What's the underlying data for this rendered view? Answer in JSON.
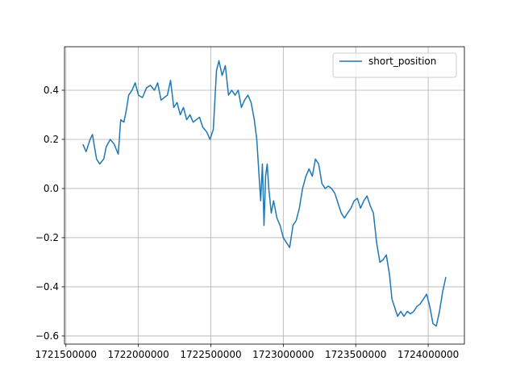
{
  "chart_data": {
    "type": "line",
    "x": [
      1721617000,
      1721639000,
      1721667000,
      1721683000,
      1721711000,
      1721733000,
      1721761000,
      1721778000,
      1721806000,
      1721833000,
      1721861000,
      1721878000,
      1721900000,
      1721917000,
      1721933000,
      1721956000,
      1721978000,
      1722000000,
      1722028000,
      1722056000,
      1722083000,
      1722111000,
      1722133000,
      1722156000,
      1722178000,
      1722200000,
      1722222000,
      1722244000,
      1722267000,
      1722289000,
      1722311000,
      1722333000,
      1722356000,
      1722378000,
      1722400000,
      1722422000,
      1722444000,
      1722472000,
      1722494000,
      1722517000,
      1722539000,
      1722556000,
      1722578000,
      1722600000,
      1722622000,
      1722644000,
      1722667000,
      1722689000,
      1722711000,
      1722733000,
      1722756000,
      1722778000,
      1722800000,
      1722817000,
      1722833000,
      1722844000,
      1722856000,
      1722867000,
      1722878000,
      1722889000,
      1722900000,
      1722917000,
      1722933000,
      1722956000,
      1722978000,
      1723000000,
      1723022000,
      1723044000,
      1723067000,
      1723089000,
      1723111000,
      1723133000,
      1723156000,
      1723178000,
      1723200000,
      1723222000,
      1723244000,
      1723267000,
      1723289000,
      1723311000,
      1723333000,
      1723356000,
      1723378000,
      1723400000,
      1723422000,
      1723444000,
      1723467000,
      1723489000,
      1723511000,
      1723533000,
      1723556000,
      1723578000,
      1723600000,
      1723622000,
      1723644000,
      1723667000,
      1723689000,
      1723711000,
      1723733000,
      1723750000,
      1723767000,
      1723789000,
      1723811000,
      1723833000,
      1723856000,
      1723878000,
      1723900000,
      1723922000,
      1723944000,
      1723967000,
      1723989000,
      1724011000,
      1724033000,
      1724056000,
      1724078000,
      1724100000,
      1724122000
    ],
    "series": [
      {
        "name": "short_position",
        "color": "#1f77b4",
        "values": [
          0.18,
          0.15,
          0.2,
          0.22,
          0.12,
          0.1,
          0.12,
          0.17,
          0.2,
          0.18,
          0.14,
          0.28,
          0.27,
          0.32,
          0.38,
          0.4,
          0.43,
          0.38,
          0.37,
          0.41,
          0.42,
          0.4,
          0.43,
          0.36,
          0.37,
          0.38,
          0.44,
          0.33,
          0.35,
          0.3,
          0.33,
          0.28,
          0.3,
          0.27,
          0.28,
          0.29,
          0.25,
          0.23,
          0.2,
          0.24,
          0.48,
          0.52,
          0.46,
          0.5,
          0.38,
          0.4,
          0.38,
          0.4,
          0.33,
          0.36,
          0.38,
          0.35,
          0.28,
          0.2,
          0.05,
          -0.05,
          0.1,
          -0.15,
          0.05,
          0.1,
          0.0,
          -0.1,
          -0.05,
          -0.12,
          -0.15,
          -0.2,
          -0.22,
          -0.24,
          -0.15,
          -0.13,
          -0.08,
          0.0,
          0.05,
          0.08,
          0.05,
          0.12,
          0.1,
          0.02,
          0.0,
          0.01,
          0.0,
          -0.02,
          -0.06,
          -0.1,
          -0.12,
          -0.1,
          -0.08,
          -0.05,
          -0.04,
          -0.08,
          -0.05,
          -0.03,
          -0.07,
          -0.1,
          -0.22,
          -0.3,
          -0.29,
          -0.27,
          -0.35,
          -0.45,
          -0.48,
          -0.52,
          -0.5,
          -0.52,
          -0.5,
          -0.51,
          -0.5,
          -0.48,
          -0.47,
          -0.45,
          -0.43,
          -0.48,
          -0.55,
          -0.56,
          -0.5,
          -0.42,
          -0.36
        ]
      }
    ],
    "xlim": [
      1721490000,
      1724250000
    ],
    "ylim": [
      -0.633,
      0.577
    ],
    "xticks": [
      1721500000,
      1722000000,
      1722500000,
      1723000000,
      1723500000,
      1724000000
    ],
    "yticks": [
      {
        "value": -0.6,
        "label": "−0.6"
      },
      {
        "value": -0.4,
        "label": "−0.4"
      },
      {
        "value": -0.2,
        "label": "−0.2"
      },
      {
        "value": 0,
        "label": "0.0"
      },
      0.2,
      0.4
    ],
    "grid": true,
    "legend": "upper right"
  }
}
